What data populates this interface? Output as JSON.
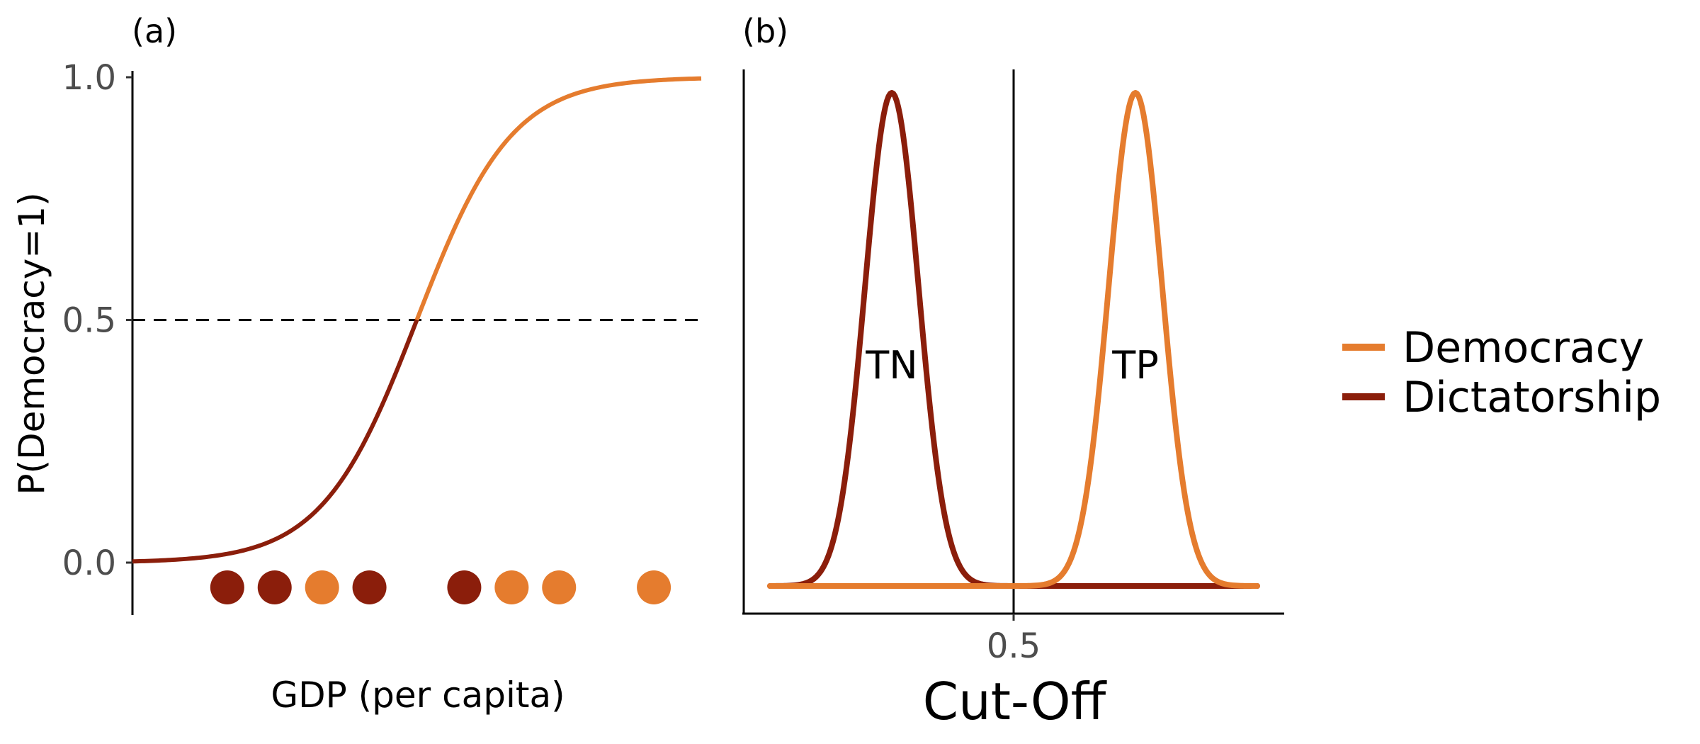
{
  "colors": {
    "democracy": "#E57C2E",
    "dictatorship": "#8B1E0B",
    "axis": "#000000",
    "tick_text": "#4d4d4d"
  },
  "legend": {
    "items": [
      {
        "label": "Democracy",
        "color": "#E57C2E"
      },
      {
        "label": "Dictatorship",
        "color": "#8B1E0B"
      }
    ]
  },
  "chart_data": [
    {
      "panel": "(a)",
      "type": "line",
      "xlabel": "GDP (per capita)",
      "ylabel": "P(Democracy=1)",
      "ylim": [
        -0.1,
        1.0
      ],
      "xlim": [
        0,
        12
      ],
      "yticks": [
        0.0,
        0.5,
        1.0
      ],
      "ytick_labels": [
        "0.0",
        "0.5",
        "1.0"
      ],
      "threshold": {
        "y": 0.5,
        "style": "dashed"
      },
      "logistic": {
        "midpoint": 6,
        "slope": 1
      },
      "series": [
        {
          "name": "Dictatorship",
          "segment": "below 0.5",
          "x_range": [
            0,
            6
          ]
        },
        {
          "name": "Democracy",
          "segment": "above 0.5",
          "x_range": [
            6,
            12
          ]
        }
      ],
      "points": [
        {
          "x": 2.0,
          "class": "Dictatorship"
        },
        {
          "x": 3.0,
          "class": "Dictatorship"
        },
        {
          "x": 4.0,
          "class": "Democracy"
        },
        {
          "x": 5.0,
          "class": "Dictatorship"
        },
        {
          "x": 7.0,
          "class": "Dictatorship"
        },
        {
          "x": 8.0,
          "class": "Democracy"
        },
        {
          "x": 9.0,
          "class": "Democracy"
        },
        {
          "x": 11.0,
          "class": "Democracy"
        }
      ],
      "points_y": -0.05
    },
    {
      "panel": "(b)",
      "type": "line",
      "xlabel": "Cut-Off",
      "ylabel": "",
      "xlim": [
        0,
        1
      ],
      "ylim": [
        0,
        1.05
      ],
      "xticks": [
        0.5
      ],
      "xtick_labels": [
        "0.5"
      ],
      "cutoff": 0.5,
      "series": [
        {
          "name": "Dictatorship",
          "peak_x": 0.25,
          "peak_height": 1.0,
          "sd": 0.055,
          "tail": "right of cut-off (flat)"
        },
        {
          "name": "Democracy",
          "peak_x": 0.75,
          "peak_height": 1.0,
          "sd": 0.055,
          "tail": "left of cut-off (flat)"
        }
      ],
      "annotations": [
        {
          "text": "TN",
          "x": 0.25,
          "y": 0.45
        },
        {
          "text": "TP",
          "x": 0.75,
          "y": 0.45
        }
      ]
    }
  ]
}
